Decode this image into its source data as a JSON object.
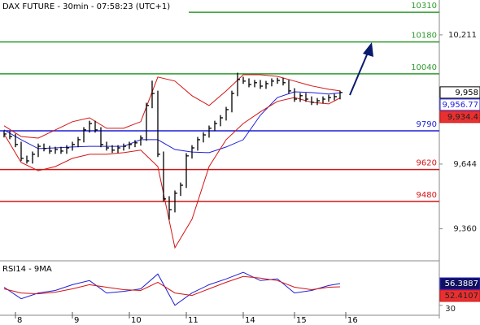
{
  "chart_data": [
    {
      "type": "ohlc",
      "title": "DAX FUTURE - 30min - 07:58:23 (UTC+1)",
      "xlim": [
        -0.714,
        76.43
      ],
      "ylim": [
        9223,
        10364
      ],
      "yticks": [
        {
          "value": 10211,
          "label": "10,211"
        },
        {
          "value": 9644,
          "label": "9,644"
        },
        {
          "value": 9360,
          "label": "9,360"
        }
      ],
      "levels": [
        {
          "value": 10310,
          "color": "#2e9a2e"
        },
        {
          "value": 10180,
          "color": "#2e9a2e"
        },
        {
          "value": 10040,
          "color": "#2e9a2e"
        },
        {
          "value": 9790,
          "color": "#1f1fd6"
        },
        {
          "value": 9620,
          "color": "#d41414"
        },
        {
          "value": 9480,
          "color": "#d41414"
        }
      ],
      "ohlc": {
        "color": "#000000",
        "high": [
          9791,
          9788,
          9777,
          9742,
          9681,
          9699,
          9734,
          9734,
          9724,
          9720,
          9720,
          9727,
          9742,
          9763,
          9806,
          9834,
          9834,
          9806,
          9742,
          9727,
          9727,
          9734,
          9742,
          9749,
          9770,
          9913,
          10010,
          9966,
          9699,
          9503,
          9528,
          9563,
          9692,
          9727,
          9763,
          9784,
          9813,
          9834,
          9859,
          9895,
          9966,
          10045,
          10027,
          10020,
          10013,
          10013,
          10009,
          10020,
          10023,
          10023,
          10013,
          9977,
          9956,
          9956,
          9941,
          9934,
          9941,
          9948,
          9952,
          9966
        ],
        "low": [
          9761,
          9753,
          9718,
          9657,
          9646,
          9646,
          9675,
          9700,
          9689,
          9689,
          9689,
          9689,
          9703,
          9718,
          9739,
          9782,
          9782,
          9718,
          9703,
          9693,
          9693,
          9703,
          9710,
          9718,
          9725,
          9746,
          9889,
          9675,
          9479,
          9400,
          9432,
          9504,
          9539,
          9668,
          9703,
          9739,
          9760,
          9789,
          9810,
          9835,
          9871,
          9942,
          9996,
          9981,
          9981,
          9974,
          9974,
          9985,
          9996,
          9989,
          9953,
          9917,
          9917,
          9917,
          9903,
          9903,
          9910,
          9917,
          9924,
          9928
        ],
        "close": [
          9776,
          9765,
          9730,
          9669,
          9658,
          9687,
          9722,
          9712,
          9701,
          9708,
          9701,
          9715,
          9730,
          9751,
          9794,
          9822,
          9794,
          9730,
          9715,
          9705,
          9715,
          9722,
          9730,
          9737,
          9758,
          9901,
          9954,
          9687,
          9491,
          9444,
          9516,
          9551,
          9680,
          9715,
          9751,
          9772,
          9801,
          9822,
          9847,
          9883,
          9954,
          10015,
          10008,
          9993,
          10001,
          9986,
          9997,
          10008,
          10011,
          10001,
          9965,
          9929,
          9944,
          9929,
          9915,
          9922,
          9929,
          9936,
          9940,
          9958
        ],
        "value_labels": [
          null,
          null,
          null,
          null,
          null,
          null,
          null,
          null,
          null,
          null,
          null,
          null,
          null,
          null,
          null,
          null,
          null,
          null,
          null,
          null,
          null,
          null,
          null,
          null,
          null,
          null,
          null,
          null,
          null,
          null,
          null,
          null,
          null,
          null,
          null,
          null,
          null,
          null,
          null,
          null,
          null,
          null,
          null,
          null,
          null,
          null,
          null,
          null,
          null,
          null,
          null,
          null,
          null,
          null,
          null,
          null,
          null,
          null,
          null,
          "9,958"
        ]
      },
      "bands": [
        {
          "color": "#d41414",
          "x": [
            0,
            3,
            6,
            9,
            12,
            15,
            18,
            21,
            24,
            27,
            30,
            33,
            36,
            39,
            42,
            45,
            48,
            51,
            54,
            57,
            59
          ],
          "values": [
            9812,
            9765,
            9758,
            9794,
            9830,
            9847,
            9801,
            9801,
            9830,
            10026,
            10008,
            9944,
            9901,
            9965,
            10036,
            10036,
            10029,
            10008,
            9987,
            9972,
            9965
          ]
        },
        {
          "color": "#1f1fd6",
          "x": [
            0,
            3,
            6,
            9,
            12,
            15,
            18,
            21,
            24,
            27,
            30,
            33,
            36,
            39,
            42,
            45,
            48,
            51,
            54,
            57,
            59
          ],
          "values": [
            9794,
            9751,
            9712,
            9715,
            9719,
            9722,
            9722,
            9722,
            9751,
            9751,
            9708,
            9697,
            9694,
            9719,
            9751,
            9858,
            9936,
            9961,
            9958,
            9951,
            9956.77
          ],
          "value_labels": [
            null,
            null,
            null,
            null,
            null,
            null,
            null,
            null,
            null,
            null,
            null,
            null,
            null,
            null,
            null,
            null,
            null,
            null,
            null,
            null,
            "9,956.77"
          ]
        },
        {
          "color": "#d41414",
          "x": [
            0,
            3,
            6,
            9,
            12,
            15,
            18,
            21,
            24,
            27,
            30,
            33,
            36,
            39,
            42,
            45,
            48,
            51,
            54,
            57,
            59
          ],
          "values": [
            9776,
            9651,
            9615,
            9633,
            9669,
            9687,
            9687,
            9694,
            9705,
            9633,
            9277,
            9402,
            9633,
            9751,
            9822,
            9873,
            9919,
            9936,
            9915,
            9908,
            9934.4
          ],
          "value_labels": [
            null,
            null,
            null,
            null,
            null,
            null,
            null,
            null,
            null,
            null,
            null,
            null,
            null,
            null,
            null,
            null,
            null,
            null,
            null,
            null,
            "9,934.4"
          ]
        }
      ]
    },
    {
      "type": "line",
      "title": "RSI14 - 9MA",
      "xlim": [
        -0.714,
        76.43
      ],
      "xticks": [
        {
          "value": 2,
          "label": "8"
        },
        {
          "value": 12,
          "label": "9"
        },
        {
          "value": 22,
          "label": "10"
        },
        {
          "value": 32,
          "label": "11"
        },
        {
          "value": 42,
          "label": "14"
        },
        {
          "value": 51,
          "label": "15"
        },
        {
          "value": 60,
          "label": "16"
        }
      ],
      "ylim": [
        20,
        80
      ],
      "yticks": [
        30
      ],
      "series": [
        {
          "color": "#1f1fd6",
          "x": [
            0,
            3,
            6,
            9,
            12,
            15,
            18,
            21,
            24,
            27,
            30,
            33,
            36,
            39,
            42,
            45,
            48,
            51,
            54,
            57,
            59
          ],
          "values": [
            52,
            38,
            45,
            48,
            55,
            60,
            45,
            47,
            50,
            68,
            30,
            45,
            55,
            62,
            70,
            60,
            62,
            45,
            48,
            54,
            56.3887
          ]
        },
        {
          "color": "#d41414",
          "x": [
            0,
            3,
            6,
            9,
            12,
            15,
            18,
            21,
            24,
            27,
            30,
            33,
            36,
            39,
            42,
            45,
            48,
            51,
            54,
            57,
            59
          ],
          "values": [
            50,
            45,
            44,
            46,
            50,
            55,
            52,
            49,
            48,
            58,
            45,
            42,
            50,
            58,
            65,
            63,
            60,
            52,
            49,
            52,
            52.4107
          ]
        }
      ]
    }
  ]
}
